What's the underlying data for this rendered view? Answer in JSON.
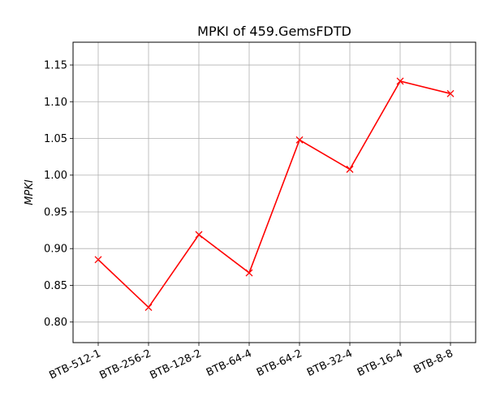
{
  "chart_data": {
    "type": "line",
    "title": "MPKI of 459.GemsFDTD",
    "xlabel": "",
    "ylabel": "MPKI",
    "categories": [
      "BTB-512-1",
      "BTB-256-2",
      "BTB-128-2",
      "BTB-64-4",
      "BTB-64-2",
      "BTB-32-4",
      "BTB-16-4",
      "BTB-8-8"
    ],
    "series": [
      {
        "values": [
          0.885,
          0.82,
          0.919,
          0.867,
          1.048,
          1.008,
          1.128,
          1.111
        ]
      }
    ],
    "ylim": [
      0.772,
      1.181
    ],
    "yticks": [
      "0.80",
      "0.85",
      "0.90",
      "0.95",
      "1.00",
      "1.05",
      "1.10",
      "1.15"
    ],
    "grid": true,
    "line_color": "#ff0000",
    "marker": "x"
  }
}
